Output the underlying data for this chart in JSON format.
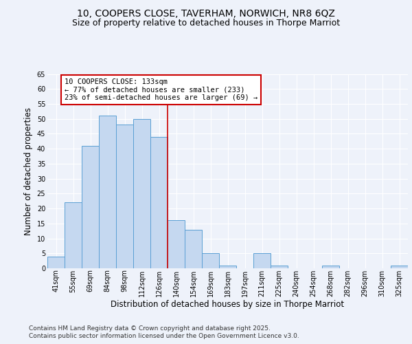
{
  "title_line1": "10, COOPERS CLOSE, TAVERHAM, NORWICH, NR8 6QZ",
  "title_line2": "Size of property relative to detached houses in Thorpe Marriot",
  "xlabel": "Distribution of detached houses by size in Thorpe Marriot",
  "ylabel": "Number of detached properties",
  "bar_labels": [
    "41sqm",
    "55sqm",
    "69sqm",
    "84sqm",
    "98sqm",
    "112sqm",
    "126sqm",
    "140sqm",
    "154sqm",
    "169sqm",
    "183sqm",
    "197sqm",
    "211sqm",
    "225sqm",
    "240sqm",
    "254sqm",
    "268sqm",
    "282sqm",
    "296sqm",
    "310sqm",
    "325sqm"
  ],
  "bar_values": [
    4,
    22,
    41,
    51,
    48,
    50,
    44,
    16,
    13,
    5,
    1,
    0,
    5,
    1,
    0,
    0,
    1,
    0,
    0,
    0,
    1
  ],
  "bar_color": "#c5d8f0",
  "bar_edge_color": "#5a9fd4",
  "annotation_text": "10 COOPERS CLOSE: 133sqm\n← 77% of detached houses are smaller (233)\n23% of semi-detached houses are larger (69) →",
  "annotation_box_color": "#ffffff",
  "annotation_box_edge": "#cc0000",
  "vline_x_index": 6.5,
  "vline_color": "#cc0000",
  "ylim": [
    0,
    65
  ],
  "yticks": [
    0,
    5,
    10,
    15,
    20,
    25,
    30,
    35,
    40,
    45,
    50,
    55,
    60,
    65
  ],
  "background_color": "#eef2fa",
  "grid_color": "#ffffff",
  "footer_line1": "Contains HM Land Registry data © Crown copyright and database right 2025.",
  "footer_line2": "Contains public sector information licensed under the Open Government Licence v3.0.",
  "title_fontsize": 10,
  "subtitle_fontsize": 9,
  "axis_label_fontsize": 8.5,
  "tick_fontsize": 7,
  "annotation_fontsize": 7.5,
  "footer_fontsize": 6.5
}
